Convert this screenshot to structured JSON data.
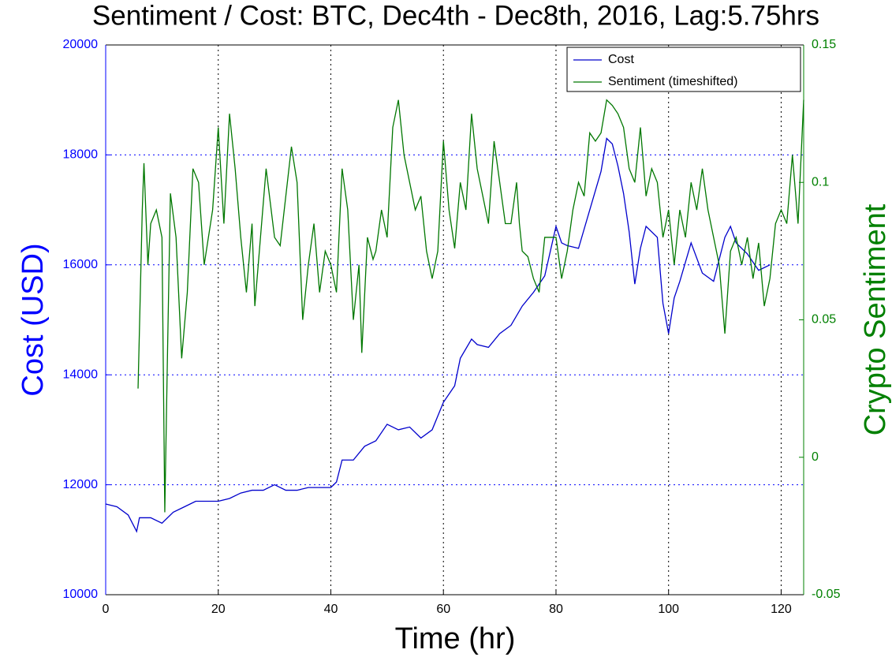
{
  "chart_data": {
    "type": "line",
    "title": "Sentiment / Cost: BTC, Dec4th - Dec8th, 2016, Lag:5.75hrs",
    "x_label": "Time (hr)",
    "y_label": "Cost (USD)",
    "y2_label": "Crypto Sentiment",
    "xlim": [
      0,
      124
    ],
    "xticks": [
      0,
      20,
      40,
      60,
      80,
      100,
      120
    ],
    "ylim": [
      10000,
      20000
    ],
    "yticks": [
      10000,
      12000,
      14000,
      16000,
      18000,
      20000
    ],
    "y2lim": [
      -0.05,
      0.15
    ],
    "y2ticks": [
      -0.05,
      0,
      0.05,
      0.1,
      0.15
    ],
    "grid": true,
    "legend": "upper right",
    "y_color": "#0000ff",
    "y2_color": "#008000",
    "series": [
      {
        "name": "Cost",
        "color": "#0000cc",
        "x": [
          0,
          2,
          4,
          5.5,
          6,
          8,
          10,
          12,
          14,
          16,
          18,
          20,
          22,
          24,
          26,
          28,
          30,
          32,
          34,
          36,
          38,
          40,
          41,
          42,
          44,
          46,
          48,
          50,
          52,
          54,
          56,
          58,
          60,
          62,
          63,
          65,
          66,
          68,
          70,
          72,
          74,
          76,
          78,
          80,
          81,
          82,
          84,
          86,
          88,
          89,
          90,
          91,
          92,
          93,
          94,
          95,
          96,
          98,
          99,
          100,
          101,
          102,
          104,
          106,
          108,
          110,
          111,
          112,
          114,
          116,
          118
        ],
        "values": [
          11650,
          11600,
          11450,
          11150,
          11400,
          11400,
          11300,
          11500,
          11600,
          11700,
          11700,
          11700,
          11750,
          11850,
          11900,
          11900,
          12000,
          11900,
          11900,
          11950,
          11950,
          11950,
          12050,
          12450,
          12450,
          12700,
          12800,
          13100,
          13000,
          13050,
          12850,
          13000,
          13500,
          13800,
          14300,
          14650,
          14550,
          14500,
          14750,
          14900,
          15250,
          15500,
          15800,
          16700,
          16400,
          16350,
          16300,
          17000,
          17700,
          18300,
          18200,
          17800,
          17300,
          16600,
          15650,
          16300,
          16700,
          16500,
          15300,
          14750,
          15400,
          15700,
          16400,
          15850,
          15700,
          16500,
          16700,
          16400,
          16200,
          15900,
          16000
        ]
      },
      {
        "name": "Sentiment (timeshifted)",
        "color": "#007700",
        "axis": "y2",
        "x": [
          5.75,
          6.5,
          6.8,
          7.5,
          8,
          9,
          10,
          10.5,
          11,
          11.5,
          12.5,
          13.5,
          14.5,
          15.5,
          16.5,
          17.5,
          19,
          20,
          21,
          22,
          23,
          24,
          25,
          26,
          26.5,
          28.5,
          30,
          31,
          33,
          34,
          35,
          36,
          37,
          38,
          39,
          40,
          41,
          42,
          43,
          44,
          45,
          45.5,
          46.5,
          47.5,
          48,
          49,
          50,
          51,
          52,
          53,
          54,
          55,
          56,
          57,
          58,
          59,
          60,
          61,
          62,
          63,
          64,
          65,
          66,
          67,
          68,
          69,
          70,
          71,
          72,
          73,
          73.5,
          74,
          75,
          76,
          77,
          78,
          79,
          80,
          81,
          82,
          83,
          84,
          85,
          86,
          87,
          88,
          89,
          90,
          91,
          92,
          93,
          94,
          95,
          96,
          97,
          98,
          99,
          100,
          101,
          102,
          103,
          104,
          105,
          106,
          107,
          108,
          109,
          110,
          111,
          112,
          113,
          114,
          115,
          116,
          117,
          118,
          119,
          120,
          121,
          122,
          123,
          124
        ],
        "values": [
          0.025,
          0.09,
          0.107,
          0.07,
          0.085,
          0.09,
          0.08,
          -0.02,
          0.04,
          0.096,
          0.08,
          0.036,
          0.06,
          0.105,
          0.1,
          0.07,
          0.09,
          0.12,
          0.085,
          0.125,
          0.105,
          0.08,
          0.06,
          0.085,
          0.055,
          0.105,
          0.08,
          0.077,
          0.113,
          0.1,
          0.05,
          0.07,
          0.085,
          0.06,
          0.075,
          0.07,
          0.06,
          0.105,
          0.09,
          0.05,
          0.07,
          0.038,
          0.08,
          0.072,
          0.075,
          0.09,
          0.08,
          0.12,
          0.13,
          0.11,
          0.1,
          0.09,
          0.095,
          0.075,
          0.065,
          0.075,
          0.115,
          0.09,
          0.076,
          0.1,
          0.09,
          0.125,
          0.105,
          0.095,
          0.085,
          0.115,
          0.1,
          0.085,
          0.085,
          0.1,
          0.085,
          0.075,
          0.073,
          0.065,
          0.06,
          0.08,
          0.08,
          0.08,
          0.065,
          0.075,
          0.09,
          0.1,
          0.095,
          0.118,
          0.115,
          0.118,
          0.13,
          0.128,
          0.125,
          0.12,
          0.105,
          0.1,
          0.12,
          0.095,
          0.105,
          0.1,
          0.08,
          0.09,
          0.07,
          0.09,
          0.08,
          0.1,
          0.09,
          0.105,
          0.09,
          0.08,
          0.07,
          0.045,
          0.075,
          0.08,
          0.07,
          0.08,
          0.065,
          0.078,
          0.055,
          0.065,
          0.085,
          0.09,
          0.085,
          0.11,
          0.085,
          0.13
        ]
      }
    ]
  }
}
